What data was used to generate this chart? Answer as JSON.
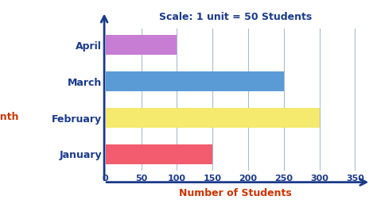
{
  "categories": [
    "January",
    "February",
    "March",
    "April"
  ],
  "values": [
    150,
    300,
    250,
    100
  ],
  "bar_colors": [
    "#f25c6e",
    "#f5e96e",
    "#5b9bd5",
    "#c87dd4"
  ],
  "title": "Scale: 1 unit = 50 Students",
  "title_color": "#1a3a8a",
  "xlabel": "Number of Students",
  "ylabel": "Month",
  "xlabel_color": "#cc3300",
  "ylabel_color": "#cc3300",
  "tick_label_color": "#1a3a8a",
  "xlim": [
    0,
    365
  ],
  "xticks": [
    0,
    50,
    100,
    150,
    200,
    250,
    300,
    350
  ],
  "axis_color": "#1a3a8a",
  "grid_color": "#aabbcc",
  "background_color": "#ffffff",
  "bar_height": 0.55
}
